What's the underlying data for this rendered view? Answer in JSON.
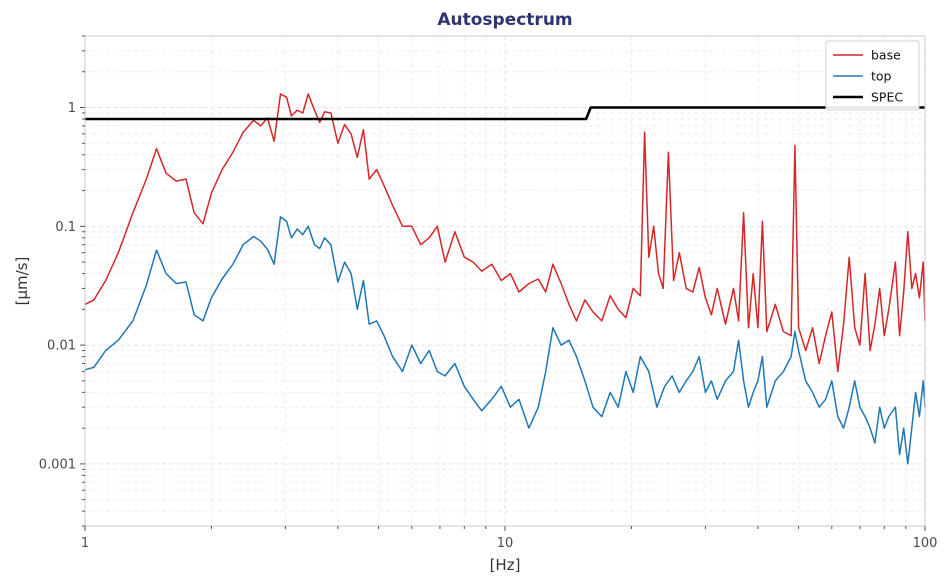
{
  "chart_data": {
    "type": "line",
    "title": "Autospectrum",
    "xlabel": "[Hz]",
    "ylabel": "[μm/s]",
    "xscale": "log",
    "yscale": "log",
    "xlim": [
      1,
      100
    ],
    "ylim": [
      0.0003,
      4
    ],
    "x_ticks": [
      1,
      10,
      100
    ],
    "x_tick_labels": [
      "1",
      "10",
      "100"
    ],
    "y_ticks": [
      0.001,
      0.01,
      0.1,
      1
    ],
    "y_tick_labels": [
      "0.001",
      "0.01",
      "0.1",
      "1"
    ],
    "grid": "on, dashed, major and minor",
    "legend": "top-right",
    "series": [
      {
        "name": "base",
        "color": "#d62728",
        "points": [
          [
            1.0,
            0.022
          ],
          [
            1.05,
            0.024
          ],
          [
            1.12,
            0.035
          ],
          [
            1.2,
            0.06
          ],
          [
            1.3,
            0.13
          ],
          [
            1.4,
            0.25
          ],
          [
            1.48,
            0.45
          ],
          [
            1.56,
            0.28
          ],
          [
            1.65,
            0.24
          ],
          [
            1.74,
            0.25
          ],
          [
            1.82,
            0.13
          ],
          [
            1.91,
            0.105
          ],
          [
            2.0,
            0.19
          ],
          [
            2.12,
            0.3
          ],
          [
            2.25,
            0.42
          ],
          [
            2.38,
            0.62
          ],
          [
            2.52,
            0.78
          ],
          [
            2.62,
            0.7
          ],
          [
            2.72,
            0.82
          ],
          [
            2.82,
            0.52
          ],
          [
            2.92,
            1.3
          ],
          [
            3.02,
            1.22
          ],
          [
            3.1,
            0.85
          ],
          [
            3.2,
            0.95
          ],
          [
            3.3,
            0.9
          ],
          [
            3.4,
            1.3
          ],
          [
            3.52,
            0.95
          ],
          [
            3.62,
            0.75
          ],
          [
            3.72,
            0.92
          ],
          [
            3.85,
            0.9
          ],
          [
            4.0,
            0.5
          ],
          [
            4.15,
            0.72
          ],
          [
            4.3,
            0.6
          ],
          [
            4.45,
            0.38
          ],
          [
            4.6,
            0.65
          ],
          [
            4.75,
            0.25
          ],
          [
            4.95,
            0.3
          ],
          [
            5.15,
            0.22
          ],
          [
            5.4,
            0.15
          ],
          [
            5.7,
            0.1
          ],
          [
            6.0,
            0.1
          ],
          [
            6.3,
            0.07
          ],
          [
            6.6,
            0.08
          ],
          [
            6.9,
            0.1
          ],
          [
            7.2,
            0.05
          ],
          [
            7.6,
            0.09
          ],
          [
            8.0,
            0.055
          ],
          [
            8.4,
            0.05
          ],
          [
            8.8,
            0.042
          ],
          [
            9.3,
            0.048
          ],
          [
            9.8,
            0.035
          ],
          [
            10.3,
            0.04
          ],
          [
            10.8,
            0.028
          ],
          [
            11.4,
            0.033
          ],
          [
            12.0,
            0.036
          ],
          [
            12.5,
            0.028
          ],
          [
            13.0,
            0.048
          ],
          [
            13.6,
            0.033
          ],
          [
            14.2,
            0.022
          ],
          [
            14.8,
            0.016
          ],
          [
            15.5,
            0.024
          ],
          [
            16.2,
            0.019
          ],
          [
            17.0,
            0.016
          ],
          [
            17.8,
            0.026
          ],
          [
            18.6,
            0.02
          ],
          [
            19.4,
            0.017
          ],
          [
            20.2,
            0.03
          ],
          [
            21.0,
            0.026
          ],
          [
            21.5,
            0.62
          ],
          [
            22.0,
            0.055
          ],
          [
            22.6,
            0.1
          ],
          [
            23.2,
            0.04
          ],
          [
            23.8,
            0.03
          ],
          [
            24.5,
            0.42
          ],
          [
            25.2,
            0.035
          ],
          [
            26.0,
            0.06
          ],
          [
            27.0,
            0.03
          ],
          [
            28.0,
            0.028
          ],
          [
            29.0,
            0.045
          ],
          [
            30.0,
            0.025
          ],
          [
            31.0,
            0.018
          ],
          [
            32.0,
            0.03
          ],
          [
            33.5,
            0.015
          ],
          [
            35.0,
            0.03
          ],
          [
            36.0,
            0.016
          ],
          [
            37.0,
            0.13
          ],
          [
            38.0,
            0.014
          ],
          [
            39.0,
            0.04
          ],
          [
            40.0,
            0.014
          ],
          [
            41.0,
            0.11
          ],
          [
            42.0,
            0.013
          ],
          [
            44.0,
            0.022
          ],
          [
            46.0,
            0.013
          ],
          [
            48.0,
            0.012
          ],
          [
            49.0,
            0.48
          ],
          [
            50.0,
            0.014
          ],
          [
            52.0,
            0.009
          ],
          [
            54.0,
            0.014
          ],
          [
            56.0,
            0.007
          ],
          [
            58.0,
            0.012
          ],
          [
            60.0,
            0.019
          ],
          [
            62.0,
            0.006
          ],
          [
            64.0,
            0.015
          ],
          [
            66.0,
            0.055
          ],
          [
            68.0,
            0.014
          ],
          [
            70.0,
            0.01
          ],
          [
            72.0,
            0.04
          ],
          [
            74.0,
            0.009
          ],
          [
            76.0,
            0.015
          ],
          [
            78.0,
            0.03
          ],
          [
            80.0,
            0.012
          ],
          [
            82.0,
            0.02
          ],
          [
            85.0,
            0.05
          ],
          [
            87.0,
            0.012
          ],
          [
            89.0,
            0.028
          ],
          [
            91.0,
            0.09
          ],
          [
            93.0,
            0.03
          ],
          [
            95.0,
            0.04
          ],
          [
            97.0,
            0.025
          ],
          [
            99.0,
            0.05
          ],
          [
            100.0,
            0.016
          ]
        ]
      },
      {
        "name": "top",
        "color": "#1f77b4",
        "points": [
          [
            1.0,
            0.0062
          ],
          [
            1.05,
            0.0065
          ],
          [
            1.12,
            0.009
          ],
          [
            1.2,
            0.011
          ],
          [
            1.3,
            0.016
          ],
          [
            1.4,
            0.032
          ],
          [
            1.48,
            0.063
          ],
          [
            1.56,
            0.04
          ],
          [
            1.65,
            0.033
          ],
          [
            1.74,
            0.034
          ],
          [
            1.82,
            0.018
          ],
          [
            1.91,
            0.016
          ],
          [
            2.0,
            0.025
          ],
          [
            2.12,
            0.036
          ],
          [
            2.25,
            0.048
          ],
          [
            2.38,
            0.07
          ],
          [
            2.52,
            0.082
          ],
          [
            2.62,
            0.075
          ],
          [
            2.72,
            0.064
          ],
          [
            2.82,
            0.048
          ],
          [
            2.92,
            0.12
          ],
          [
            3.02,
            0.11
          ],
          [
            3.1,
            0.08
          ],
          [
            3.2,
            0.095
          ],
          [
            3.3,
            0.085
          ],
          [
            3.4,
            0.1
          ],
          [
            3.52,
            0.07
          ],
          [
            3.62,
            0.065
          ],
          [
            3.72,
            0.08
          ],
          [
            3.85,
            0.07
          ],
          [
            4.0,
            0.034
          ],
          [
            4.15,
            0.05
          ],
          [
            4.3,
            0.04
          ],
          [
            4.45,
            0.02
          ],
          [
            4.6,
            0.035
          ],
          [
            4.75,
            0.015
          ],
          [
            4.95,
            0.016
          ],
          [
            5.15,
            0.012
          ],
          [
            5.4,
            0.008
          ],
          [
            5.7,
            0.006
          ],
          [
            6.0,
            0.01
          ],
          [
            6.3,
            0.007
          ],
          [
            6.6,
            0.009
          ],
          [
            6.9,
            0.006
          ],
          [
            7.2,
            0.0055
          ],
          [
            7.6,
            0.007
          ],
          [
            8.0,
            0.0045
          ],
          [
            8.4,
            0.0035
          ],
          [
            8.8,
            0.0028
          ],
          [
            9.3,
            0.0035
          ],
          [
            9.8,
            0.0045
          ],
          [
            10.3,
            0.003
          ],
          [
            10.8,
            0.0035
          ],
          [
            11.4,
            0.002
          ],
          [
            12.0,
            0.003
          ],
          [
            12.5,
            0.006
          ],
          [
            13.0,
            0.014
          ],
          [
            13.6,
            0.01
          ],
          [
            14.2,
            0.011
          ],
          [
            14.8,
            0.008
          ],
          [
            15.5,
            0.005
          ],
          [
            16.2,
            0.003
          ],
          [
            17.0,
            0.0025
          ],
          [
            17.8,
            0.004
          ],
          [
            18.6,
            0.003
          ],
          [
            19.4,
            0.006
          ],
          [
            20.2,
            0.004
          ],
          [
            21.0,
            0.008
          ],
          [
            22.0,
            0.006
          ],
          [
            23.0,
            0.003
          ],
          [
            24.0,
            0.0045
          ],
          [
            25.0,
            0.0055
          ],
          [
            26.0,
            0.004
          ],
          [
            27.0,
            0.005
          ],
          [
            28.0,
            0.006
          ],
          [
            29.0,
            0.008
          ],
          [
            30.0,
            0.004
          ],
          [
            31.0,
            0.005
          ],
          [
            32.0,
            0.0035
          ],
          [
            33.5,
            0.005
          ],
          [
            35.0,
            0.006
          ],
          [
            36.0,
            0.011
          ],
          [
            37.0,
            0.005
          ],
          [
            38.0,
            0.003
          ],
          [
            39.0,
            0.004
          ],
          [
            40.0,
            0.005
          ],
          [
            41.0,
            0.008
          ],
          [
            42.0,
            0.003
          ],
          [
            44.0,
            0.005
          ],
          [
            46.0,
            0.006
          ],
          [
            48.0,
            0.008
          ],
          [
            49.0,
            0.013
          ],
          [
            50.0,
            0.009
          ],
          [
            52.0,
            0.005
          ],
          [
            54.0,
            0.004
          ],
          [
            56.0,
            0.003
          ],
          [
            58.0,
            0.0035
          ],
          [
            60.0,
            0.005
          ],
          [
            62.0,
            0.0025
          ],
          [
            64.0,
            0.002
          ],
          [
            66.0,
            0.003
          ],
          [
            68.0,
            0.005
          ],
          [
            70.0,
            0.003
          ],
          [
            72.0,
            0.0025
          ],
          [
            74.0,
            0.002
          ],
          [
            76.0,
            0.0015
          ],
          [
            78.0,
            0.003
          ],
          [
            80.0,
            0.002
          ],
          [
            82.0,
            0.0025
          ],
          [
            85.0,
            0.003
          ],
          [
            87.0,
            0.0012
          ],
          [
            89.0,
            0.002
          ],
          [
            91.0,
            0.001
          ],
          [
            93.0,
            0.002
          ],
          [
            95.0,
            0.004
          ],
          [
            97.0,
            0.0025
          ],
          [
            99.0,
            0.005
          ],
          [
            100.0,
            0.003
          ]
        ]
      },
      {
        "name": "SPEC",
        "color": "#000000",
        "points": [
          [
            1,
            0.8
          ],
          [
            15.6,
            0.8
          ],
          [
            16.0,
            1.0
          ],
          [
            100,
            1.0
          ]
        ]
      }
    ]
  }
}
